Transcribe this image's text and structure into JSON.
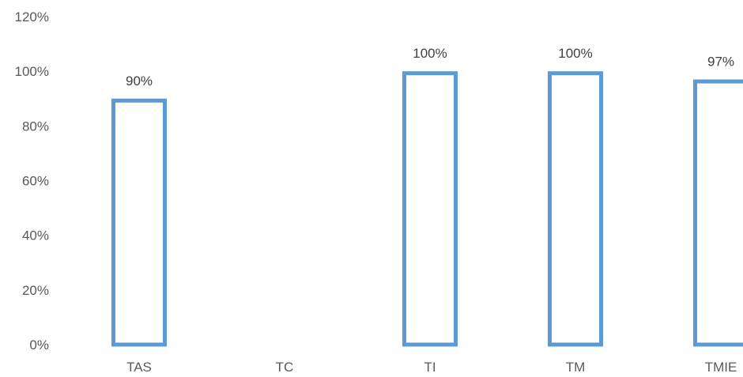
{
  "chart_data": {
    "type": "bar",
    "categories": [
      "TAS",
      "TC",
      "TI",
      "TM",
      "TMIE"
    ],
    "values": [
      0.9,
      null,
      1.0,
      1.0,
      0.97
    ],
    "data_labels": [
      "90%",
      "",
      "100%",
      "100%",
      "97%"
    ],
    "ylim": [
      0,
      1.2
    ],
    "yticks": [
      0,
      0.2,
      0.4,
      0.6,
      0.8,
      1.0,
      1.2
    ],
    "ytick_labels": [
      "0%",
      "20%",
      "40%",
      "60%",
      "80%",
      "100%",
      "120%"
    ],
    "title": "",
    "xlabel": "",
    "ylabel": "",
    "grid": false,
    "legend": "none",
    "bar_style": "outline",
    "bar_color": "#5B9BD5"
  }
}
